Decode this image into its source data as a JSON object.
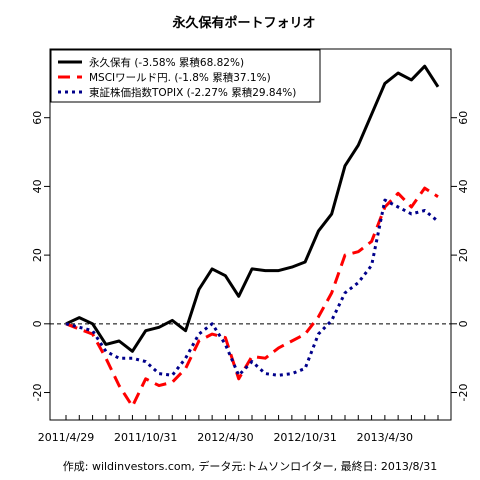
{
  "chart_data": {
    "type": "line",
    "title": "永久保有ポートフォリオ",
    "footer": "作成: wildinvestors.com, データ元:トムソンロイター, 最終日: 2013/8/31",
    "x": [
      "2011/4/29",
      "2011/5/31",
      "2011/6/30",
      "2011/7/29",
      "2011/8/31",
      "2011/9/30",
      "2011/10/31",
      "2011/11/30",
      "2011/12/30",
      "2012/1/31",
      "2012/2/29",
      "2012/3/30",
      "2012/4/30",
      "2012/5/31",
      "2012/6/29",
      "2012/7/31",
      "2012/8/31",
      "2012/9/28",
      "2012/10/31",
      "2012/11/30",
      "2012/12/28",
      "2013/1/31",
      "2013/2/28",
      "2013/3/29",
      "2013/4/30",
      "2013/5/31",
      "2013/6/28",
      "2013/7/31",
      "2013/8/30"
    ],
    "x_tick_labels": [
      "2011/4/29",
      "2011/10/31",
      "2012/4/30",
      "2012/10/31",
      "2013/4/30"
    ],
    "x_tick_index": [
      0,
      6,
      12,
      18,
      24
    ],
    "ylim": [
      -28,
      80
    ],
    "y_ticks": [
      -20,
      0,
      20,
      40,
      60
    ],
    "y_tick_labels": [
      "-20",
      "0",
      "20",
      "40",
      "60"
    ],
    "zero_line": true,
    "legend_position": "top-left",
    "series": [
      {
        "name": "永久保有 (-3.58% 累積68.82%)",
        "color": "#000000",
        "style": "solid",
        "width": 3,
        "values": [
          0,
          1.8,
          0,
          -6,
          -5,
          -8,
          -2,
          -1,
          1,
          -2,
          10,
          16,
          14,
          8,
          16,
          15.5,
          15.5,
          16.5,
          18,
          27,
          32,
          46,
          52,
          61,
          70,
          73,
          71,
          75,
          69
        ]
      },
      {
        "name": "MSCIワールド円. (-1.8% 累積37.1%)",
        "color": "#ff0000",
        "style": "dashed",
        "width": 3,
        "values": [
          0,
          -1.5,
          -3,
          -10,
          -18,
          -24,
          -16,
          -18,
          -17,
          -13,
          -5,
          -3,
          -4,
          -16,
          -9.5,
          -10,
          -7,
          -5,
          -3,
          2,
          9,
          20,
          21,
          24,
          34,
          38,
          34,
          39.5,
          37
        ]
      },
      {
        "name": "東証株価指数TOPIX (-2.27% 累積29.84%)",
        "color": "#00008b",
        "style": "dotted",
        "width": 3,
        "values": [
          0,
          -1,
          -2,
          -8,
          -10,
          -10,
          -11,
          -14.5,
          -15,
          -10,
          -3,
          0,
          -6,
          -15,
          -11,
          -14.5,
          -15,
          -14.5,
          -13,
          -3,
          1,
          9,
          12,
          17,
          36,
          34,
          32,
          33,
          29.84
        ]
      }
    ]
  }
}
